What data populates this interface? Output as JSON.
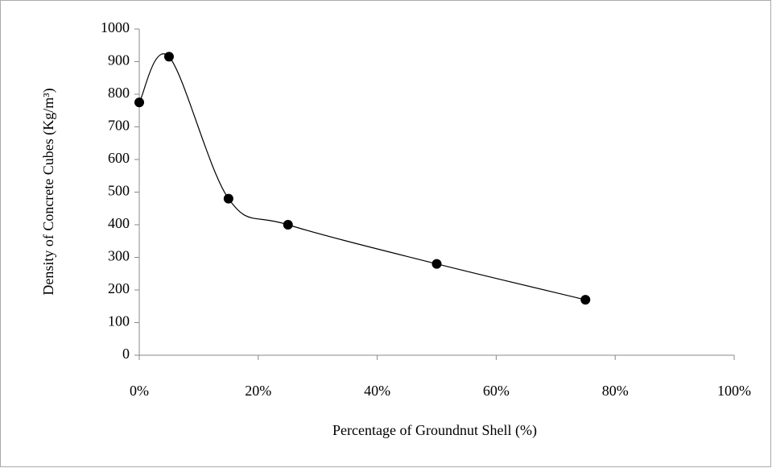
{
  "chart_data": {
    "type": "scatter",
    "x_label": "Percentage of Groundnut Shell (%)",
    "y_label": "Density of Concrete Cubes (Kg/m³)",
    "series": [
      {
        "color": "#000000",
        "x": [
          0,
          5,
          15,
          25,
          50,
          75
        ],
        "values": [
          775,
          915,
          480,
          400,
          280,
          170
        ]
      }
    ],
    "smooth": true,
    "xlim": [
      0,
      100
    ],
    "xticks": [
      {
        "value": 0,
        "label": "0%"
      },
      {
        "value": 20,
        "label": "20%"
      },
      {
        "value": 40,
        "label": "40%"
      },
      {
        "value": 60,
        "label": "60%"
      },
      {
        "value": 80,
        "label": "80%"
      },
      {
        "value": 100,
        "label": "100%"
      }
    ],
    "ylim": [
      0,
      1000
    ],
    "yticks": [
      0,
      100,
      200,
      300,
      400,
      500,
      600,
      700,
      800,
      900,
      1000
    ],
    "grid": false
  }
}
